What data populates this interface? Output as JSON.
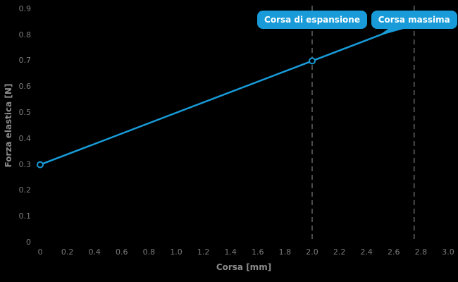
{
  "chart_data": {
    "type": "line",
    "title": "",
    "xlabel": "Corsa [mm]",
    "ylabel": "Forza elastica [N]",
    "xlim": [
      0,
      3.0
    ],
    "ylim": [
      0,
      0.9
    ],
    "x_ticks": [
      "0",
      "0.2",
      "0.4",
      "0.6",
      "0.8",
      "1.0",
      "1.2",
      "1.4",
      "1.6",
      "1.8",
      "2.0",
      "2.2",
      "2.4",
      "2.6",
      "2.8",
      "3.0"
    ],
    "y_ticks": [
      "0",
      "0.1",
      "0.2",
      "0.3",
      "0.4",
      "0.5",
      "0.6",
      "0.7",
      "0.8",
      "0.9"
    ],
    "grid": false,
    "legend_position": "none",
    "series": [
      {
        "name": "Forza elastica",
        "color": "#189bd8",
        "points": [
          [
            0,
            0.3
          ],
          [
            2.0,
            0.7
          ],
          [
            2.75,
            0.85
          ]
        ],
        "marker_points": [
          [
            0,
            0.3
          ],
          [
            2.0,
            0.7
          ]
        ],
        "marker_style": "open-circle"
      }
    ],
    "annotations": [
      {
        "label": "Corsa di espansione",
        "x": 2.0,
        "has_tail": false
      },
      {
        "label": "Corsa massima",
        "x": 2.75,
        "has_tail": true
      }
    ]
  },
  "colors": {
    "background": "#000000",
    "accent_blue": "#189bd8",
    "tick_text": "#7c7c7c",
    "axis_title_text": "#8a8a8a",
    "dashed_line": "#4a4a4a",
    "bubble_text": "#ffffff"
  }
}
